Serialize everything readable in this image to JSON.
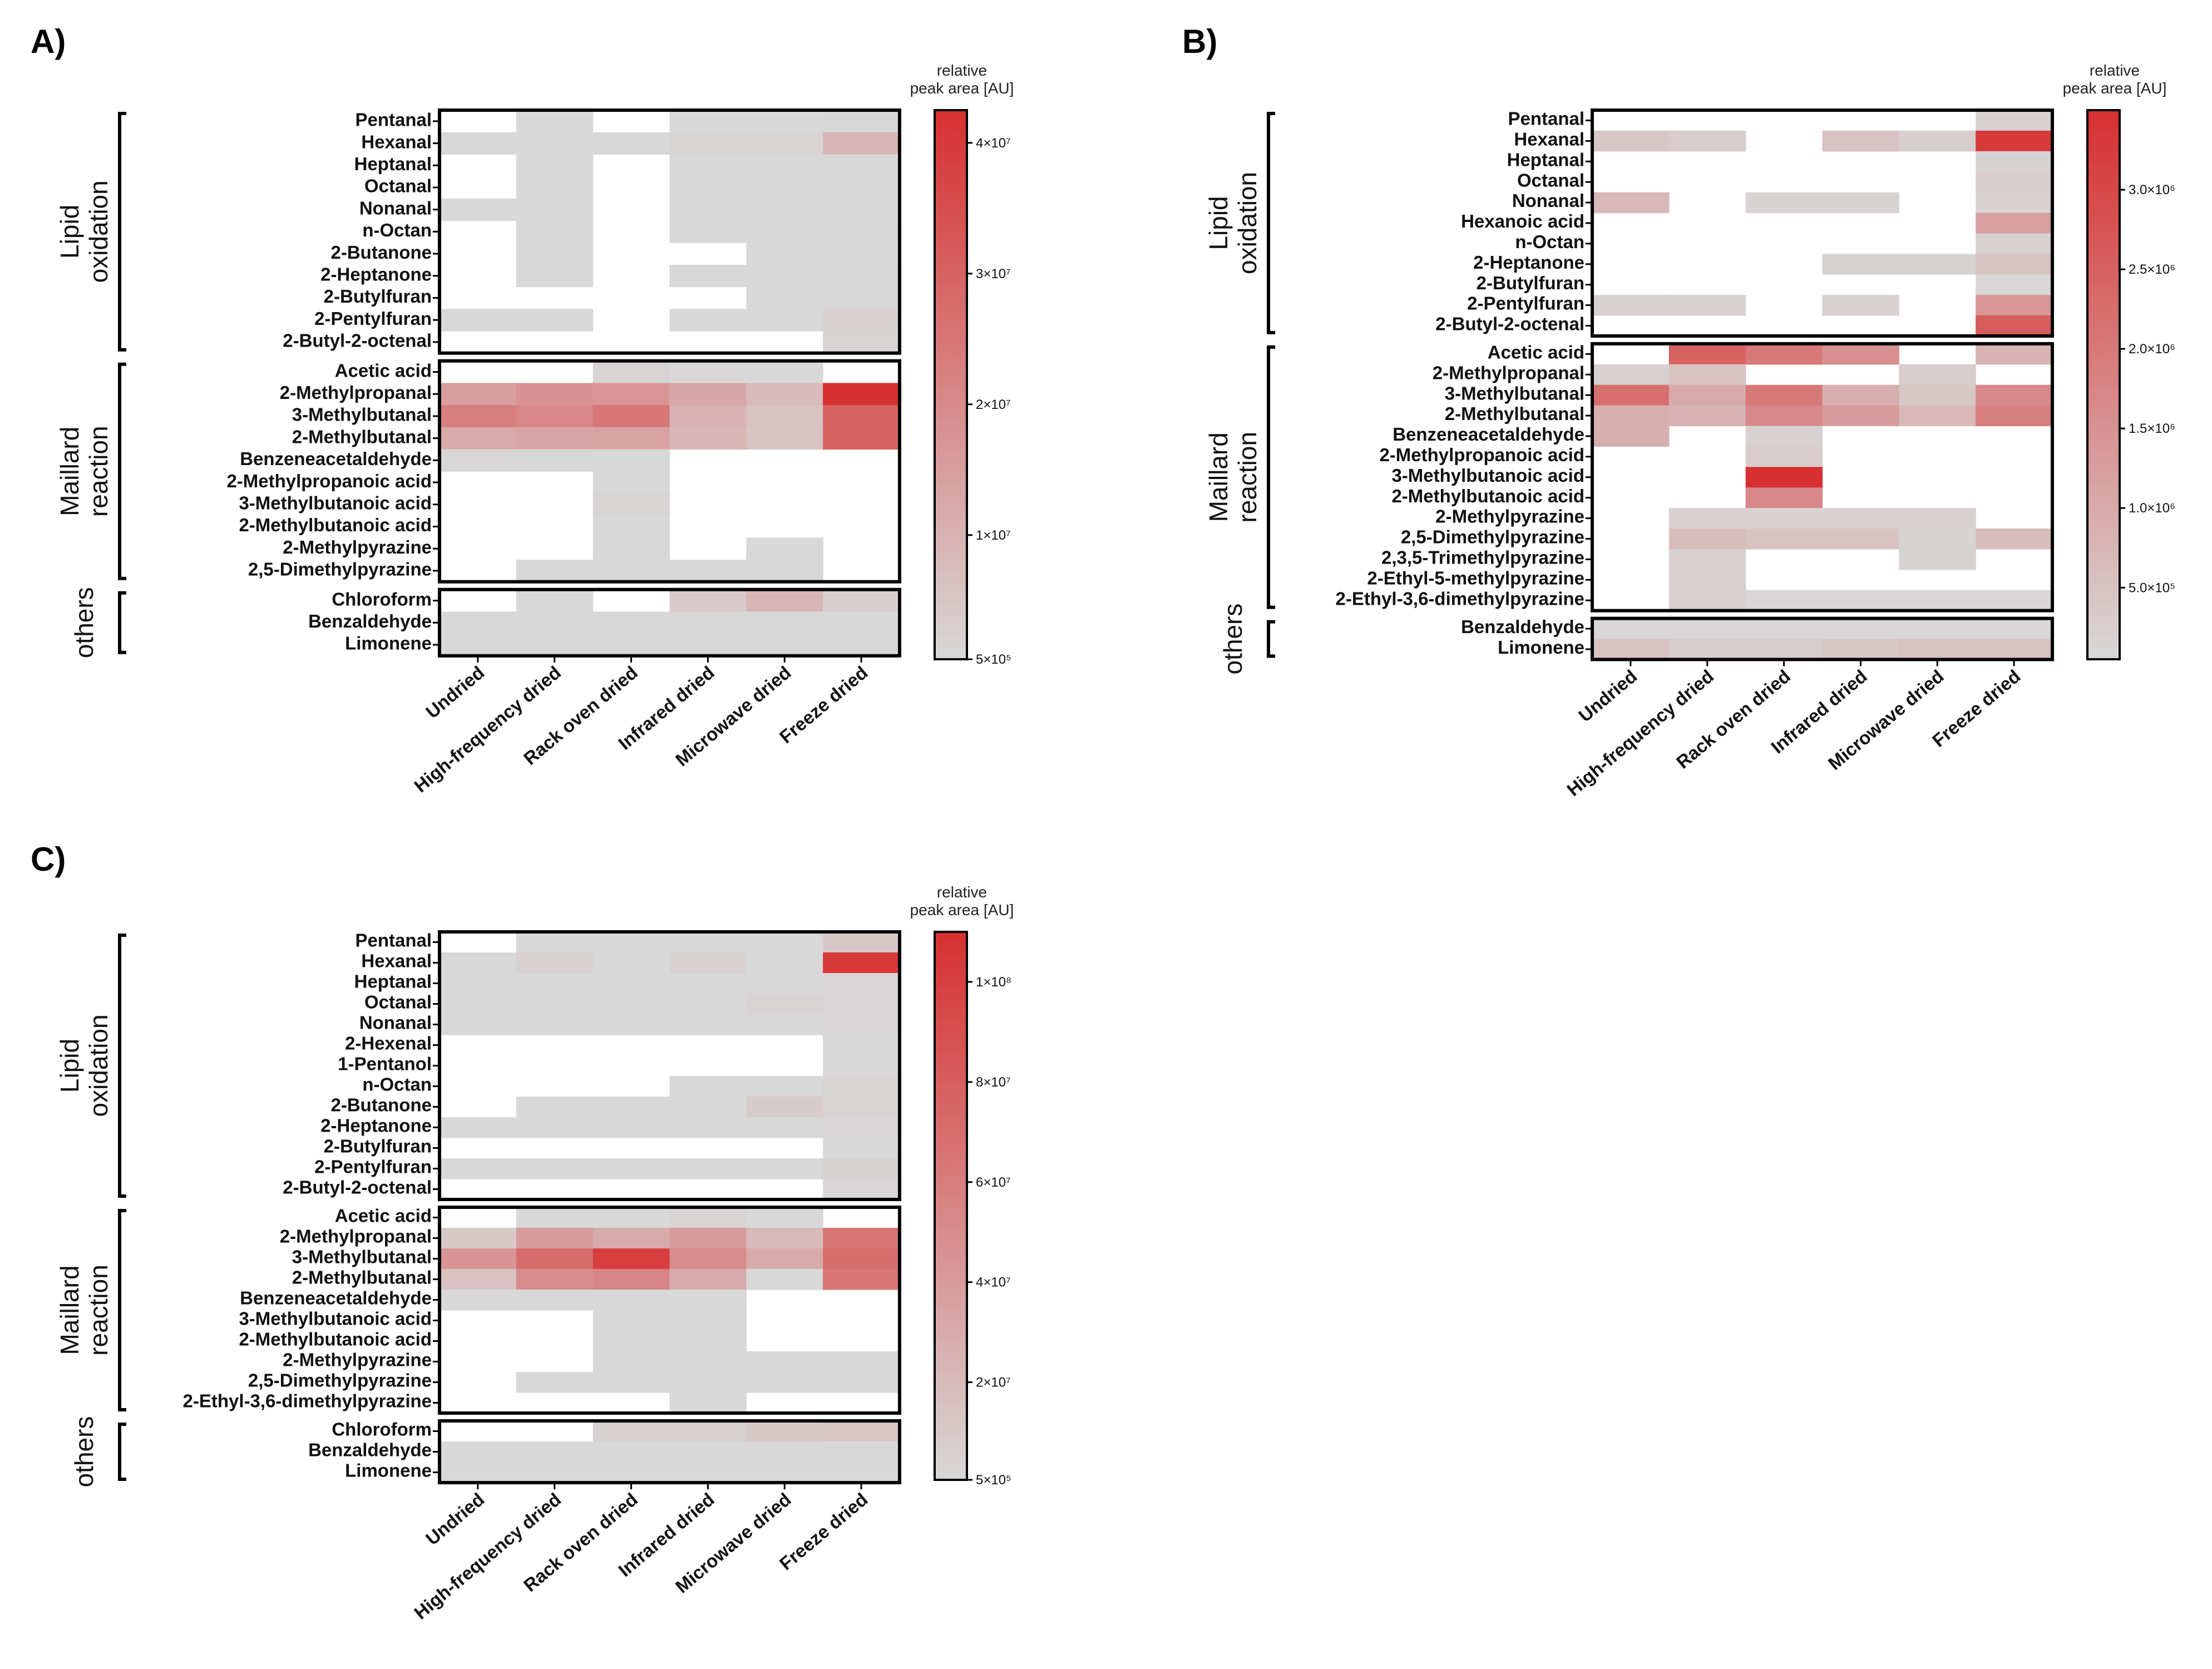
{
  "chart_data": [
    {
      "type": "heatmap",
      "panel": "A)",
      "colorbar_title": [
        "relative",
        "peak area [AU]"
      ],
      "colorbar_ticks": [
        {
          "label": "5×10⁵",
          "value": 500000
        },
        {
          "label": "1×10⁷",
          "value": 10000000
        },
        {
          "label": "2×10⁷",
          "value": 20000000
        },
        {
          "label": "3×10⁷",
          "value": 30000000
        },
        {
          "label": "4×10⁷",
          "value": 40000000
        }
      ],
      "zlim": [
        500000,
        42500000
      ],
      "columns": [
        "Undried",
        "High-frequency dried",
        "Rack oven dried",
        "Infrared dried",
        "Microwave dried",
        "Freeze dried"
      ],
      "groups": [
        {
          "name": [
            "Lipid",
            "oxidation"
          ],
          "rows": [
            "Pentanal",
            "Hexanal",
            "Heptanal",
            "Octanal",
            "Nonanal",
            "n-Octan",
            "2-Butanone",
            "2-Heptanone",
            "2-Butylfuran",
            "2-Pentylfuran",
            "2-Butyl-2-octenal"
          ],
          "values": [
            [
              null,
              500000,
              null,
              500000,
              500000,
              800000
            ],
            [
              500000,
              500000,
              500000,
              1500000,
              1500000,
              9000000
            ],
            [
              null,
              500000,
              null,
              500000,
              500000,
              500000
            ],
            [
              null,
              500000,
              null,
              500000,
              500000,
              500000
            ],
            [
              500000,
              500000,
              null,
              500000,
              500000,
              500000
            ],
            [
              null,
              500000,
              null,
              500000,
              500000,
              800000
            ],
            [
              null,
              500000,
              null,
              null,
              500000,
              500000
            ],
            [
              null,
              500000,
              null,
              500000,
              500000,
              800000
            ],
            [
              null,
              null,
              null,
              null,
              500000,
              800000
            ],
            [
              500000,
              500000,
              null,
              500000,
              500000,
              2000000
            ],
            [
              null,
              null,
              null,
              null,
              null,
              1500000
            ]
          ]
        },
        {
          "name": [
            "Maillard",
            "reaction"
          ],
          "rows": [
            "Acetic acid",
            "2-Methylpropanal",
            "3-Methylbutanal",
            "2-Methylbutanal",
            "Benzeneacetaldehyde",
            "2-Methylpropanoic acid",
            "3-Methylbutanoic acid",
            "2-Methylbutanoic acid",
            "2-Methylpyrazine",
            "2,5-Dimethylpyrazine"
          ],
          "values": [
            [
              null,
              null,
              1500000,
              500000,
              500000,
              null
            ],
            [
              15000000,
              18000000,
              17000000,
              13000000,
              8000000,
              42500000
            ],
            [
              23000000,
              21000000,
              25000000,
              10000000,
              6000000,
              30000000
            ],
            [
              12000000,
              13000000,
              14000000,
              9000000,
              5500000,
              30000000
            ],
            [
              500000,
              500000,
              500000,
              null,
              null,
              null
            ],
            [
              null,
              null,
              500000,
              null,
              null,
              null
            ],
            [
              null,
              null,
              1500000,
              null,
              null,
              null
            ],
            [
              null,
              null,
              500000,
              null,
              null,
              null
            ],
            [
              null,
              null,
              500000,
              null,
              500000,
              null
            ],
            [
              null,
              500000,
              500000,
              500000,
              500000,
              null
            ]
          ]
        },
        {
          "name": [
            "others"
          ],
          "rows": [
            "Chloroform",
            "Benzaldehyde",
            "Limonene"
          ],
          "values": [
            [
              null,
              500000,
              null,
              4000000,
              9000000,
              3000000
            ],
            [
              500000,
              500000,
              500000,
              500000,
              500000,
              500000
            ],
            [
              500000,
              500000,
              500000,
              500000,
              500000,
              500000
            ]
          ]
        }
      ]
    },
    {
      "type": "heatmap",
      "panel": "B)",
      "colorbar_title": [
        "relative",
        "peak area [AU]"
      ],
      "colorbar_ticks": [
        {
          "label": "5.0×10⁵",
          "value": 500000
        },
        {
          "label": "1.0×10⁶",
          "value": 1000000
        },
        {
          "label": "1.5×10⁶",
          "value": 1500000
        },
        {
          "label": "2.0×10⁶",
          "value": 2000000
        },
        {
          "label": "2.5×10⁶",
          "value": 2500000
        },
        {
          "label": "3.0×10⁶",
          "value": 3000000
        }
      ],
      "zlim": [
        50000,
        3500000
      ],
      "columns": [
        "Undried",
        "High-frequency dried",
        "Rack oven dried",
        "Infrared dried",
        "Microwave dried",
        "Freeze dried"
      ],
      "groups": [
        {
          "name": [
            "Lipid",
            "oxidation"
          ],
          "rows": [
            "Pentanal",
            "Hexanal",
            "Heptanal",
            "Octanal",
            "Nonanal",
            "Hexanoic acid",
            "n-Octan",
            "2-Heptanone",
            "2-Butylfuran",
            "2-Pentylfuran",
            "2-Butyl-2-octenal"
          ],
          "values": [
            [
              null,
              null,
              null,
              null,
              null,
              200000
            ],
            [
              400000,
              300000,
              null,
              500000,
              250000,
              3300000
            ],
            [
              null,
              null,
              null,
              null,
              null,
              150000
            ],
            [
              null,
              null,
              null,
              null,
              null,
              250000
            ],
            [
              700000,
              null,
              150000,
              150000,
              null,
              200000
            ],
            [
              null,
              null,
              null,
              null,
              null,
              1200000
            ],
            [
              null,
              null,
              null,
              null,
              null,
              200000
            ],
            [
              null,
              null,
              null,
              150000,
              150000,
              500000
            ],
            [
              null,
              null,
              null,
              null,
              null,
              100000
            ],
            [
              200000,
              200000,
              null,
              200000,
              null,
              1400000
            ],
            [
              null,
              null,
              null,
              null,
              null,
              2600000
            ]
          ]
        },
        {
          "name": [
            "Maillard",
            "reaction"
          ],
          "rows": [
            "Acetic acid",
            "2-Methylpropanal",
            "3-Methylbutanal",
            "2-Methylbutanal",
            "Benzeneacetaldehyde",
            "2-Methylpropanoic acid",
            "3-Methylbutanoic acid",
            "2-Methylbutanoic acid",
            "2-Methylpyrazine",
            "2,5-Dimethylpyrazine",
            "2,3,5-Trimethylpyrazine",
            "2-Ethyl-5-methylpyrazine",
            "2-Ethyl-3,6-dimethylpyrazine"
          ],
          "values": [
            [
              null,
              2500000,
              2000000,
              1500000,
              null,
              800000
            ],
            [
              200000,
              500000,
              null,
              null,
              300000,
              null
            ],
            [
              2200000,
              1000000,
              2000000,
              900000,
              400000,
              1700000
            ],
            [
              900000,
              800000,
              1700000,
              1300000,
              700000,
              1900000
            ],
            [
              900000,
              null,
              200000,
              null,
              null,
              null
            ],
            [
              null,
              null,
              300000,
              null,
              null,
              null
            ],
            [
              null,
              null,
              3500000,
              null,
              null,
              null
            ],
            [
              null,
              null,
              1700000,
              null,
              null,
              null
            ],
            [
              null,
              200000,
              200000,
              200000,
              200000,
              null
            ],
            [
              null,
              600000,
              500000,
              500000,
              150000,
              600000
            ],
            [
              null,
              200000,
              null,
              null,
              150000,
              null
            ],
            [
              null,
              200000,
              null,
              null,
              null,
              null
            ],
            [
              null,
              200000,
              100000,
              100000,
              100000,
              100000
            ]
          ]
        },
        {
          "name": [
            "others"
          ],
          "rows": [
            "Benzaldehyde",
            "Limonene"
          ],
          "values": [
            [
              100000,
              100000,
              100000,
              100000,
              100000,
              100000
            ],
            [
              500000,
              300000,
              300000,
              400000,
              500000,
              500000
            ]
          ]
        }
      ]
    },
    {
      "type": "heatmap",
      "panel": "C)",
      "colorbar_title": [
        "relative",
        "peak area [AU]"
      ],
      "colorbar_ticks": [
        {
          "label": "5×10⁵",
          "value": 500000
        },
        {
          "label": "2×10⁷",
          "value": 20000000
        },
        {
          "label": "4×10⁷",
          "value": 40000000
        },
        {
          "label": "6×10⁷",
          "value": 60000000
        },
        {
          "label": "8×10⁷",
          "value": 80000000
        },
        {
          "label": "1×10⁸",
          "value": 100000000
        }
      ],
      "zlim": [
        500000,
        110000000
      ],
      "columns": [
        "Undried",
        "High-frequency dried",
        "Rack oven dried",
        "Infrared dried",
        "Microwave dried",
        "Freeze dried"
      ],
      "groups": [
        {
          "name": [
            "Lipid",
            "oxidation"
          ],
          "rows": [
            "Pentanal",
            "Hexanal",
            "Heptanal",
            "Octanal",
            "Nonanal",
            "2-Hexenal",
            "1-Pentanol",
            "n-Octan",
            "2-Butanone",
            "2-Heptanone",
            "2-Butylfuran",
            "2-Pentylfuran",
            "2-Butyl-2-octenal"
          ],
          "values": [
            [
              null,
              500000,
              500000,
              500000,
              500000,
              10000000
            ],
            [
              500000,
              5000000,
              500000,
              5000000,
              500000,
              105000000
            ],
            [
              500000,
              500000,
              500000,
              500000,
              500000,
              1500000
            ],
            [
              500000,
              500000,
              500000,
              500000,
              3000000,
              1500000
            ],
            [
              500000,
              500000,
              500000,
              500000,
              500000,
              1500000
            ],
            [
              null,
              null,
              null,
              null,
              null,
              500000
            ],
            [
              null,
              null,
              null,
              null,
              null,
              500000
            ],
            [
              null,
              null,
              null,
              500000,
              500000,
              3000000
            ],
            [
              null,
              500000,
              500000,
              500000,
              9000000,
              3000000
            ],
            [
              500000,
              500000,
              500000,
              500000,
              500000,
              2000000
            ],
            [
              null,
              null,
              null,
              null,
              null,
              500000
            ],
            [
              500000,
              500000,
              500000,
              500000,
              500000,
              4000000
            ],
            [
              null,
              null,
              null,
              null,
              null,
              1500000
            ]
          ]
        },
        {
          "name": [
            "Maillard",
            "reaction"
          ],
          "rows": [
            "Acetic acid",
            "2-Methylpropanal",
            "3-Methylbutanal",
            "2-Methylbutanal",
            "Benzeneacetaldehyde",
            "3-Methylbutanoic acid",
            "2-Methylbutanoic acid",
            "2-Methylpyrazine",
            "2,5-Dimethylpyrazine",
            "2-Ethyl-3,6-dimethylpyrazine"
          ],
          "values": [
            [
              null,
              500000,
              500000,
              3000000,
              500000,
              null
            ],
            [
              10000000,
              40000000,
              30000000,
              40000000,
              20000000,
              65000000
            ],
            [
              45000000,
              70000000,
              100000000,
              50000000,
              30000000,
              70000000
            ],
            [
              15000000,
              50000000,
              55000000,
              30000000,
              500000,
              65000000
            ],
            [
              500000,
              500000,
              500000,
              500000,
              null,
              null
            ],
            [
              null,
              null,
              500000,
              500000,
              null,
              null
            ],
            [
              null,
              null,
              500000,
              500000,
              null,
              null
            ],
            [
              null,
              null,
              500000,
              500000,
              500000,
              500000
            ],
            [
              null,
              500000,
              500000,
              500000,
              500000,
              500000
            ],
            [
              null,
              null,
              null,
              500000,
              null,
              null
            ]
          ]
        },
        {
          "name": [
            "others"
          ],
          "rows": [
            "Chloroform",
            "Benzaldehyde",
            "Limonene"
          ],
          "values": [
            [
              null,
              null,
              5000000,
              6000000,
              10000000,
              13000000
            ],
            [
              500000,
              500000,
              500000,
              500000,
              500000,
              500000
            ],
            [
              500000,
              500000,
              500000,
              500000,
              500000,
              500000
            ]
          ]
        }
      ]
    }
  ]
}
